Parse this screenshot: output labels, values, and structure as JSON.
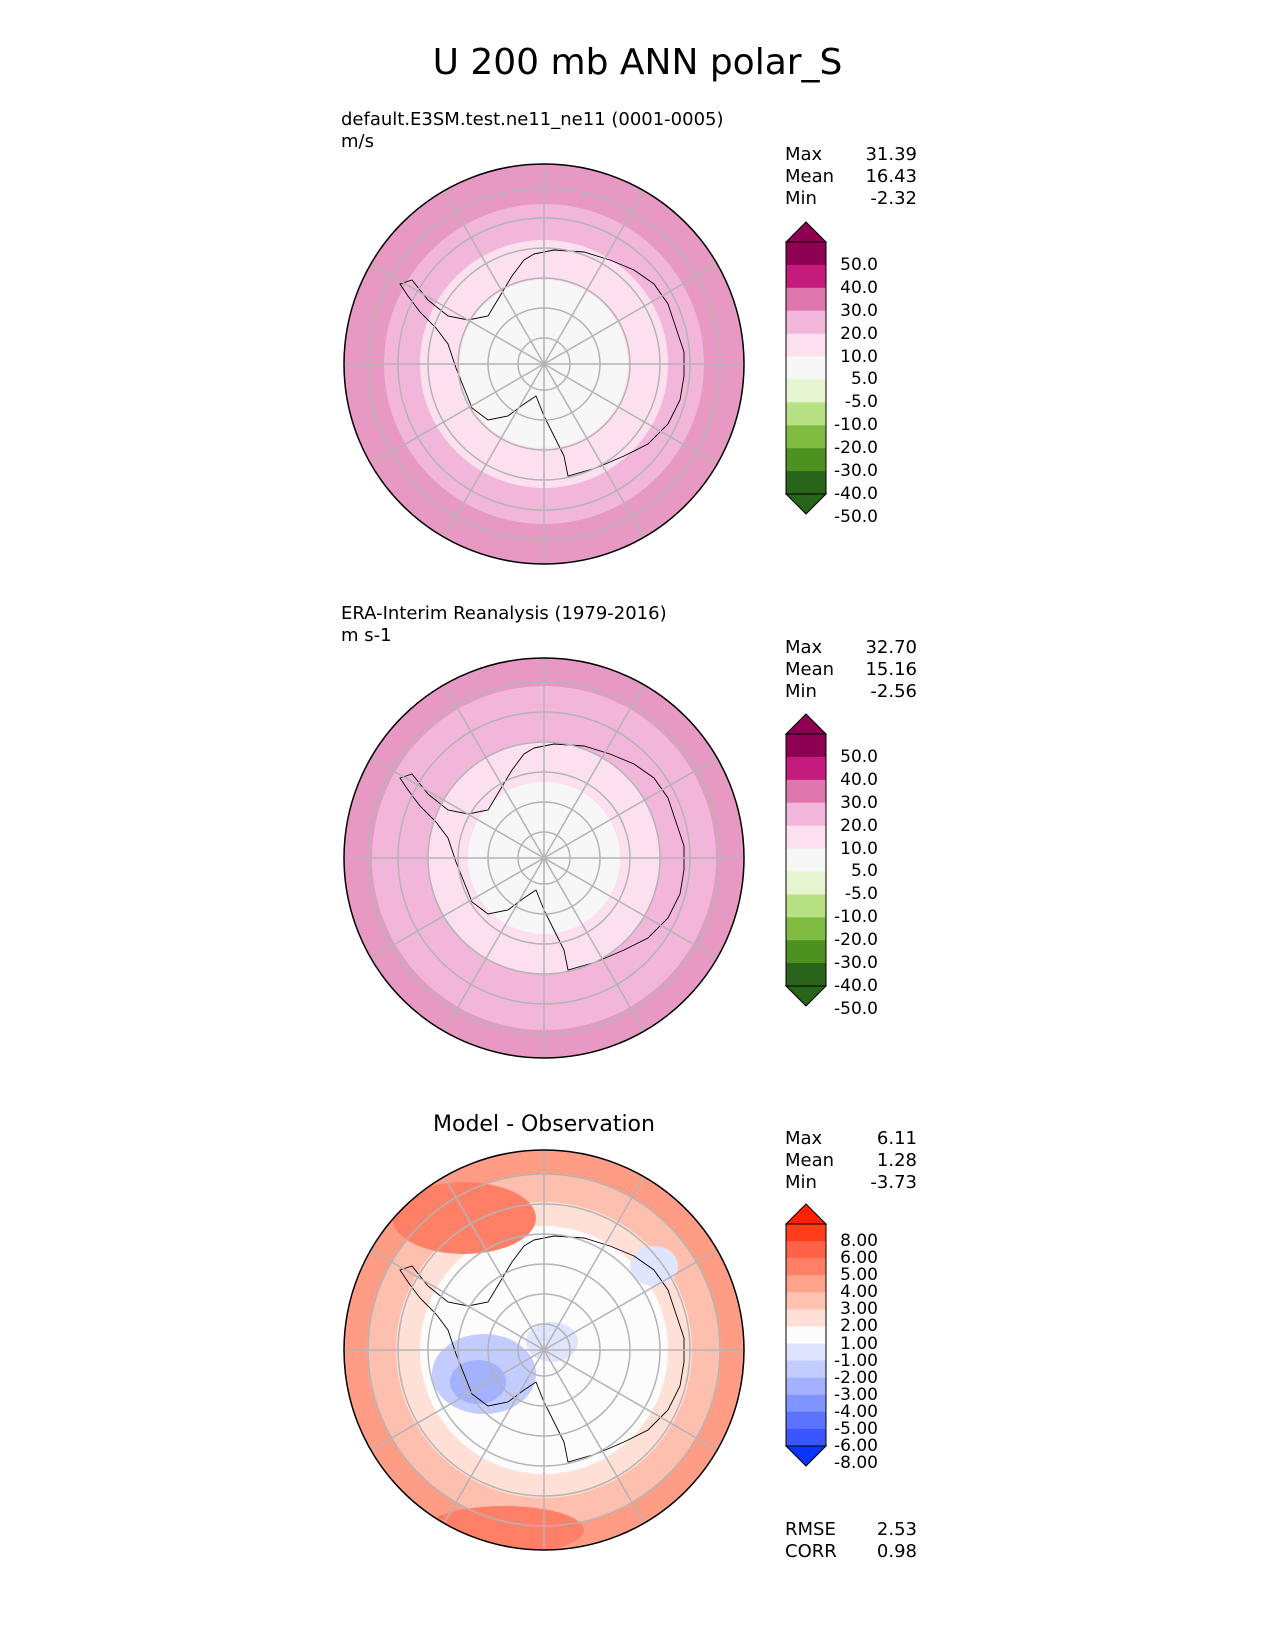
{
  "figure_title": "U 200 mb ANN polar_S",
  "chart_data": [
    {
      "type": "polar-contour",
      "subtitle_line1": "default.E3SM.test.ne11_ne11 (0001-0005)",
      "subtitle_line2": "m/s",
      "stats": [
        {
          "label": "Max",
          "value": "31.39"
        },
        {
          "label": "Mean",
          "value": "16.43"
        },
        {
          "label": "Min",
          "value": "-2.32"
        }
      ],
      "colorbar": {
        "ticks": [
          "50.0",
          "40.0",
          "30.0",
          "20.0",
          "10.0",
          "5.0",
          "-5.0",
          "-10.0",
          "-20.0",
          "-30.0",
          "-40.0",
          "-50.0"
        ],
        "colors": [
          "#8e0152",
          "#c51b7d",
          "#de77ae",
          "#f1b6da",
          "#fde0ef",
          "#f7f7f7",
          "#e6f5d0",
          "#b8e186",
          "#7fbc41",
          "#4d9221",
          "#276419"
        ],
        "max_color": "#8e0152",
        "min_color": "#276419"
      },
      "rings_color": "#f7f7f7",
      "rings": [
        {
          "r": 1.0,
          "color": "#e799c4"
        },
        {
          "r": 0.8,
          "color": "#f1b6da"
        },
        {
          "r": 0.62,
          "color": "#fde0ef"
        },
        {
          "r": 0.42,
          "color": "#f7f7f7"
        }
      ],
      "blobs": [],
      "footer": []
    },
    {
      "type": "polar-contour",
      "subtitle_line1": "ERA-Interim Reanalysis (1979-2016)",
      "subtitle_line2": "m s-1",
      "stats": [
        {
          "label": "Max",
          "value": "32.70"
        },
        {
          "label": "Mean",
          "value": "15.16"
        },
        {
          "label": "Min",
          "value": "-2.56"
        }
      ],
      "colorbar": {
        "ticks": [
          "50.0",
          "40.0",
          "30.0",
          "20.0",
          "10.0",
          "5.0",
          "-5.0",
          "-10.0",
          "-20.0",
          "-30.0",
          "-40.0",
          "-50.0"
        ],
        "colors": [
          "#8e0152",
          "#c51b7d",
          "#de77ae",
          "#f1b6da",
          "#fde0ef",
          "#f7f7f7",
          "#e6f5d0",
          "#b8e186",
          "#7fbc41",
          "#4d9221",
          "#276419"
        ],
        "max_color": "#8e0152",
        "min_color": "#276419"
      },
      "rings": [
        {
          "r": 1.0,
          "color": "#e799c4"
        },
        {
          "r": 0.86,
          "color": "#f1b6da"
        },
        {
          "r": 0.58,
          "color": "#fde0ef"
        },
        {
          "r": 0.38,
          "color": "#f7f7f7"
        }
      ],
      "blobs": [],
      "footer": []
    },
    {
      "type": "polar-contour",
      "panel_title": "Model - Observation",
      "stats": [
        {
          "label": "Max",
          "value": "6.11"
        },
        {
          "label": "Mean",
          "value": "1.28"
        },
        {
          "label": "Min",
          "value": "-3.73"
        }
      ],
      "colorbar": {
        "ticks": [
          "8.00",
          "6.00",
          "5.00",
          "4.00",
          "3.00",
          "2.00",
          "1.00",
          "-1.00",
          "-2.00",
          "-3.00",
          "-4.00",
          "-5.00",
          "-6.00",
          "-8.00"
        ],
        "colors": [
          "#ff3d1a",
          "#ff6347",
          "#ff8066",
          "#ffa38c",
          "#ffc2b0",
          "#ffe0d6",
          "#fcfcfc",
          "#dfe4ff",
          "#c2ccff",
          "#a3b1ff",
          "#8094ff",
          "#5c73ff",
          "#3b55ff"
        ],
        "max_color": "#ff2200",
        "min_color": "#0a33ff"
      },
      "rings": [
        {
          "r": 1.0,
          "color": "#ff9c85"
        },
        {
          "r": 0.88,
          "color": "#ffbfae"
        },
        {
          "r": 0.74,
          "color": "#ffe0d6"
        },
        {
          "r": 0.62,
          "color": "#fcfcfc"
        }
      ],
      "blobs": [
        {
          "cx": -0.3,
          "cy": 0.12,
          "rx": 0.26,
          "ry": 0.2,
          "color": "#c2ccff"
        },
        {
          "cx": -0.33,
          "cy": 0.16,
          "rx": 0.14,
          "ry": 0.11,
          "color": "#a3b1ff"
        },
        {
          "cx": 0.04,
          "cy": -0.04,
          "rx": 0.13,
          "ry": 0.1,
          "color": "#dfe4ff"
        },
        {
          "cx": 0.55,
          "cy": -0.42,
          "rx": 0.12,
          "ry": 0.1,
          "color": "#dfe4ff"
        },
        {
          "cx": -0.4,
          "cy": -0.66,
          "rx": 0.36,
          "ry": 0.18,
          "color": "#ff8066"
        },
        {
          "cx": -0.2,
          "cy": 0.9,
          "rx": 0.4,
          "ry": 0.12,
          "color": "#ff8066"
        }
      ],
      "footer": [
        {
          "label": "RMSE",
          "value": "2.53"
        },
        {
          "label": "CORR",
          "value": "0.98"
        }
      ]
    }
  ]
}
